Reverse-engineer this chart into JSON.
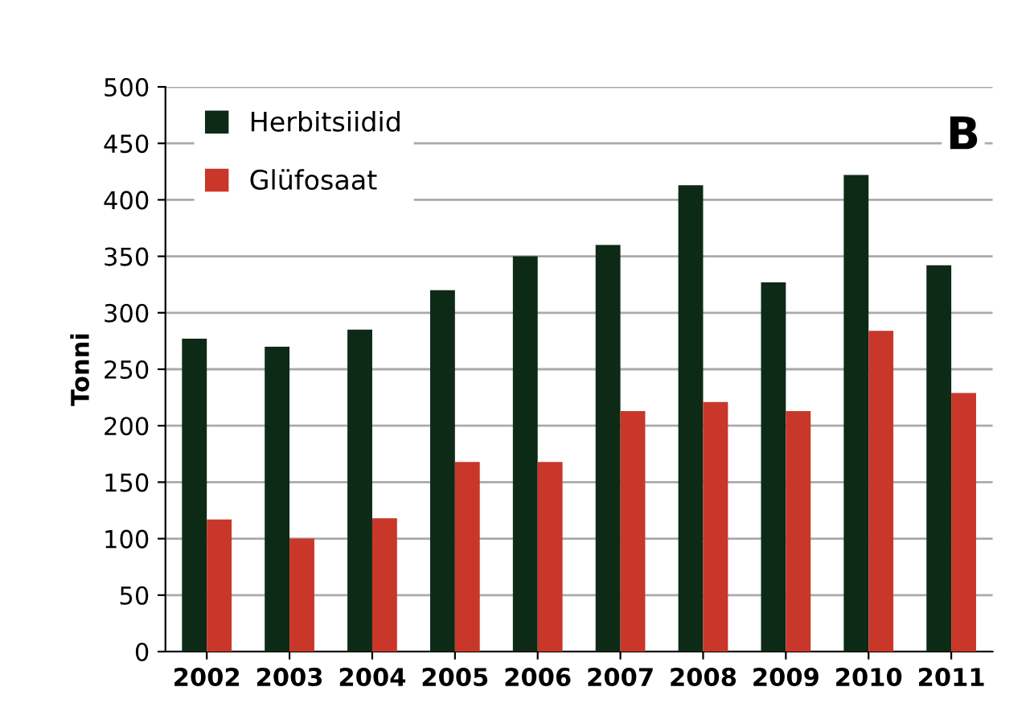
{
  "chart_data": {
    "type": "bar",
    "ylabel": "Tonni",
    "categories": [
      "2002",
      "2003",
      "2004",
      "2005",
      "2006",
      "2007",
      "2008",
      "2009",
      "2010",
      "2011"
    ],
    "series": [
      {
        "name": "Herbitsiidid",
        "color": "#0d2a17",
        "values": [
          277,
          270,
          285,
          320,
          350,
          360,
          413,
          327,
          422,
          342
        ]
      },
      {
        "name": "Glüfosaat",
        "color": "#c8372a",
        "values": [
          117,
          100,
          118,
          168,
          168,
          213,
          221,
          213,
          284,
          229
        ]
      }
    ],
    "ylim": [
      0,
      500
    ],
    "yticks": [
      0,
      50,
      100,
      150,
      200,
      250,
      300,
      350,
      400,
      450,
      500
    ],
    "grid": "y",
    "legend": "top left",
    "annotations": [
      "B"
    ]
  }
}
